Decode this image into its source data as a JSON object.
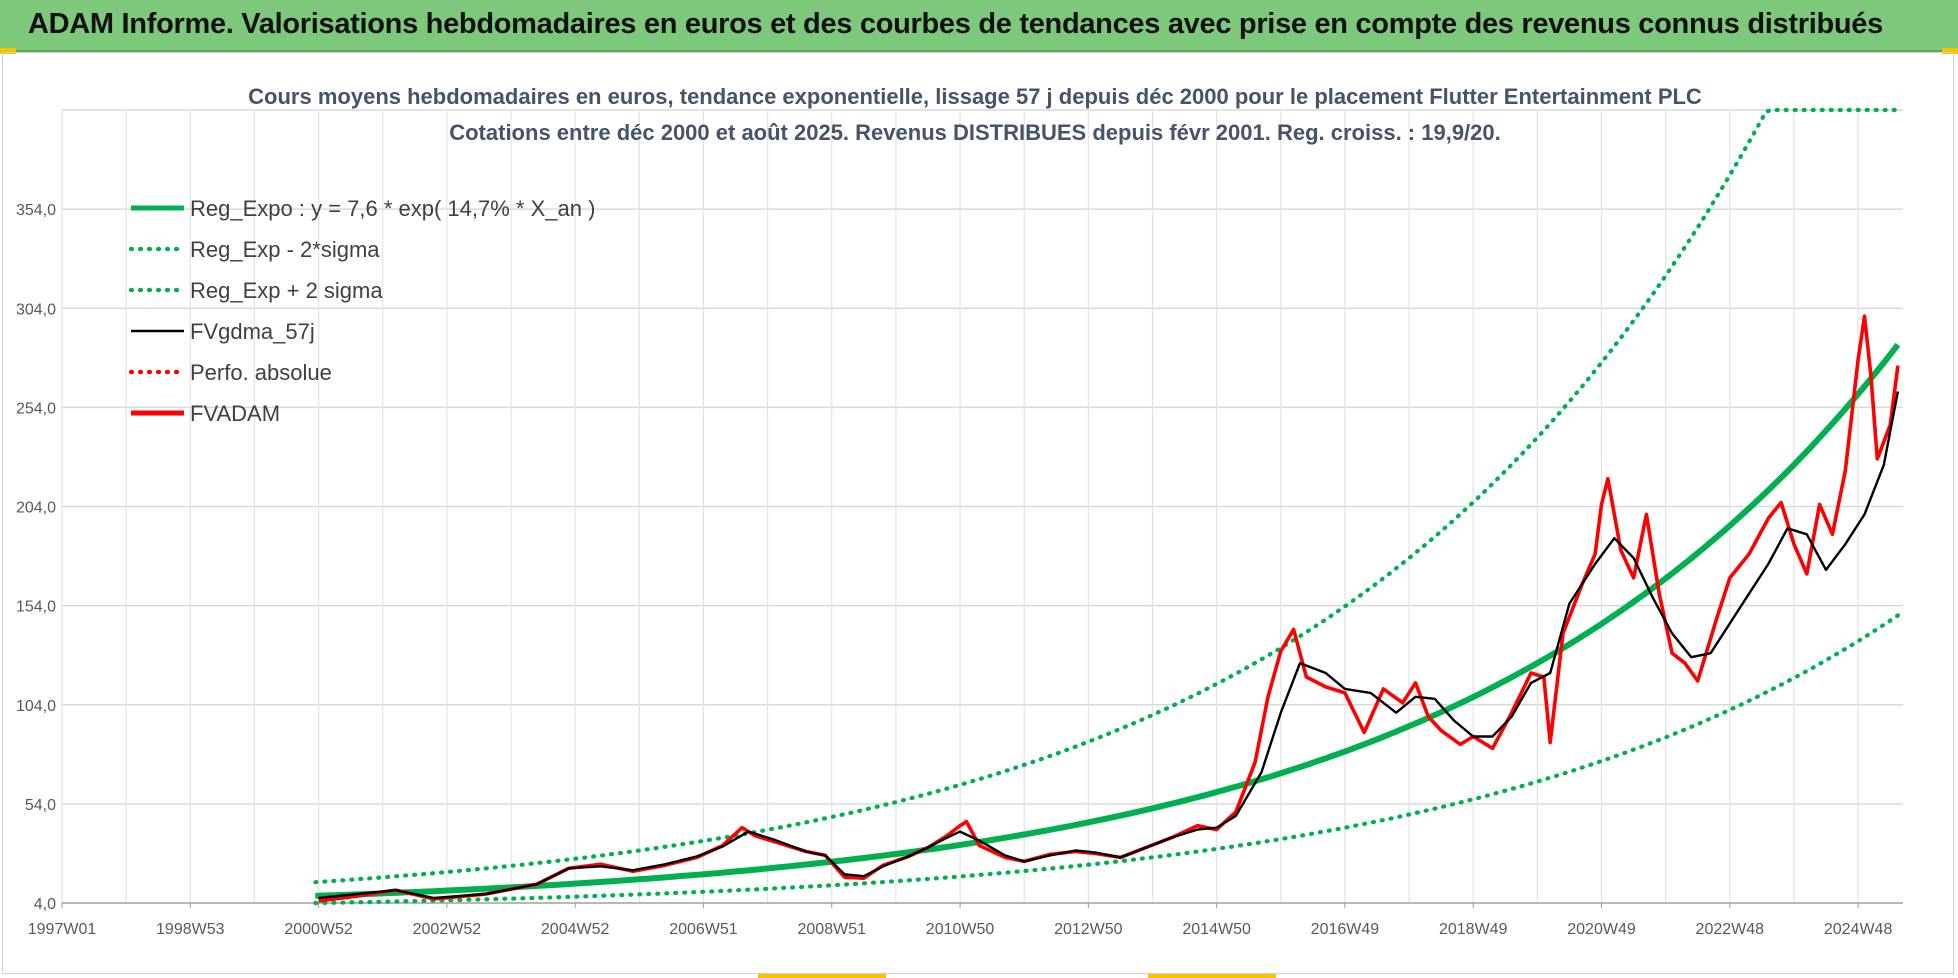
{
  "banner": {
    "title": "ADAM Informe. Valorisations hebdomadaires en euros et des courbes de tendances avec prise en compte des revenus connus distribués",
    "color": "#7dc87a"
  },
  "chart_data": {
    "type": "line",
    "title": "Cours moyens hebdomadaires en euros, tendance exponentielle, lissage 57 j depuis déc 2000 pour le placement Flutter Entertainment PLC",
    "subtitle": "Cotations entre déc 2000 et août 2025. Revenus DISTRIBUES depuis févr 2001. Reg. croiss. : 19,9/20.",
    "xlabel": "",
    "ylabel": "",
    "x_ticks": [
      "1997W01",
      "1998W53",
      "2000W52",
      "2002W52",
      "2004W52",
      "2006W51",
      "2008W51",
      "2010W50",
      "2012W50",
      "2014W50",
      "2016W49",
      "2018W49",
      "2020W49",
      "2022W48",
      "2024W48"
    ],
    "x_range": [
      1997.0,
      2025.7
    ],
    "y_ticks": [
      "4,0",
      "54,0",
      "104,0",
      "154,0",
      "204,0",
      "254,0",
      "304,0",
      "354,0"
    ],
    "ylim": [
      4,
      404
    ],
    "grid": true,
    "legend_position": "top-left",
    "trend": {
      "a": 7.6,
      "rate": 0.147,
      "x0": 2000.95,
      "x_end": 2025.62
    },
    "series": [
      {
        "name": "Reg_Expo : y = 7,6 * exp( 14,7% *  X_an )",
        "color": "#00b050",
        "style": "solid-thick",
        "x": [
          2000.95,
          2003,
          2005,
          2007,
          2009,
          2011,
          2013,
          2015,
          2016,
          2017,
          2018,
          2019,
          2020,
          2021,
          2022,
          2023,
          2024,
          2025,
          2025.62
        ],
        "values": [
          7.6,
          10.3,
          13.8,
          18.5,
          24.8,
          33.2,
          44.4,
          59.4,
          68.8,
          79.5,
          92.1,
          106.5,
          123.2,
          142.6,
          165.1,
          191.0,
          221.0,
          255.7,
          279.7
        ]
      },
      {
        "name": "Reg_Exp - 2*sigma",
        "color": "#00b050",
        "style": "dotted",
        "x": [
          2000.95,
          2003,
          2005,
          2007,
          2009,
          2011,
          2013,
          2015,
          2016,
          2017,
          2018,
          2019,
          2020,
          2021,
          2022,
          2023,
          2024,
          2025,
          2025.62
        ],
        "values": [
          4.0,
          5.2,
          7.0,
          9.4,
          12.6,
          16.9,
          22.6,
          30.3,
          35.0,
          40.5,
          46.9,
          54.3,
          62.8,
          72.7,
          84.1,
          97.3,
          112.6,
          130.3,
          146.0
        ]
      },
      {
        "name": "Reg_Exp + 2 sigma",
        "color": "#00b050",
        "style": "dotted",
        "x": [
          2000.95,
          2003,
          2005,
          2007,
          2009,
          2011,
          2013,
          2015,
          2016,
          2017,
          2018,
          2019,
          2020,
          2021,
          2022,
          2023,
          2023.75,
          2025.62
        ],
        "values": [
          14.5,
          19.5,
          26.2,
          35.2,
          47.1,
          63.1,
          84.5,
          113.2,
          131.0,
          151.6,
          175.4,
          203.0,
          234.9,
          271.9,
          314.6,
          364.1,
          404.0,
          404.0
        ]
      },
      {
        "name": "FVgdma_57j",
        "color": "#000000",
        "style": "solid",
        "x": [
          2001.0,
          2002.2,
          2002.8,
          2003.6,
          2004.4,
          2004.9,
          2005.4,
          2005.9,
          2006.4,
          2006.9,
          2007.3,
          2007.7,
          2008.1,
          2008.6,
          2008.9,
          2009.2,
          2009.5,
          2009.8,
          2010.2,
          2010.5,
          2010.8,
          2011.0,
          2011.3,
          2011.7,
          2012.0,
          2012.4,
          2012.8,
          2013.1,
          2013.5,
          2013.9,
          2014.3,
          2014.7,
          2015.0,
          2015.3,
          2015.7,
          2016.0,
          2016.3,
          2016.7,
          2017.0,
          2017.4,
          2017.8,
          2018.1,
          2018.4,
          2018.7,
          2019.0,
          2019.3,
          2019.6,
          2019.9,
          2020.2,
          2020.5,
          2020.9,
          2021.2,
          2021.5,
          2021.8,
          2022.1,
          2022.4,
          2022.7,
          2023.0,
          2023.3,
          2023.6,
          2023.9,
          2024.2,
          2024.5,
          2024.8,
          2025.1,
          2025.4,
          2025.62
        ],
        "values": [
          6.5,
          10.5,
          6.5,
          8.5,
          13.5,
          21.5,
          22.5,
          20.5,
          23.5,
          27.5,
          32.5,
          40.0,
          36.0,
          30.0,
          28.0,
          18.5,
          17.5,
          22.5,
          27.5,
          32.0,
          37.0,
          40.0,
          35.5,
          28.0,
          25.0,
          28.0,
          30.5,
          29.5,
          27.0,
          32.0,
          37.0,
          41.0,
          42.0,
          48.0,
          70.0,
          100.0,
          125.0,
          120.0,
          112.0,
          110.0,
          100.0,
          108.0,
          107.0,
          96.0,
          88.0,
          88.0,
          98.0,
          115.0,
          120.0,
          155.0,
          175.0,
          188.0,
          178.0,
          158.0,
          140.0,
          128.0,
          130.0,
          145.0,
          160.0,
          175.0,
          193.0,
          190.0,
          172.0,
          185.0,
          200.0,
          225.0,
          262.0
        ]
      },
      {
        "name": "Perfo. absolue",
        "color": "#ff0000",
        "style": "dotted",
        "x": [],
        "values": []
      },
      {
        "name": "FVADAM",
        "color": "#ff0000",
        "style": "solid-thick",
        "x": [
          2001.0,
          2001.6,
          2002.2,
          2002.8,
          2003.6,
          2004.4,
          2004.9,
          2005.4,
          2005.9,
          2006.4,
          2006.9,
          2007.3,
          2007.6,
          2007.8,
          2008.1,
          2008.6,
          2008.9,
          2009.2,
          2009.5,
          2009.8,
          2010.2,
          2010.5,
          2010.8,
          2011.0,
          2011.1,
          2011.3,
          2011.7,
          2012.0,
          2012.4,
          2012.8,
          2013.1,
          2013.5,
          2013.9,
          2014.3,
          2014.7,
          2015.0,
          2015.3,
          2015.6,
          2015.8,
          2016.0,
          2016.2,
          2016.4,
          2016.7,
          2017.0,
          2017.3,
          2017.6,
          2017.9,
          2018.1,
          2018.3,
          2018.5,
          2018.8,
          2019.0,
          2019.3,
          2019.6,
          2019.9,
          2020.1,
          2020.2,
          2020.4,
          2020.7,
          2020.9,
          2021.0,
          2021.1,
          2021.3,
          2021.5,
          2021.7,
          2021.9,
          2022.1,
          2022.3,
          2022.5,
          2022.8,
          2023.0,
          2023.3,
          2023.6,
          2023.8,
          2024.0,
          2024.2,
          2024.4,
          2024.6,
          2024.8,
          2025.0,
          2025.1,
          2025.2,
          2025.3,
          2025.5,
          2025.62
        ],
        "values": [
          5.0,
          7.5,
          10.5,
          6.0,
          8.5,
          13.5,
          21.5,
          23.5,
          20.0,
          23.0,
          27.0,
          33.0,
          42.0,
          38.0,
          35.0,
          30.0,
          28.0,
          17.0,
          16.5,
          23.0,
          27.5,
          32.0,
          38.0,
          43.0,
          45.0,
          33.0,
          27.0,
          25.0,
          28.5,
          30.0,
          29.0,
          27.0,
          32.0,
          37.0,
          43.0,
          41.0,
          50.0,
          75.0,
          108.0,
          131.0,
          142.0,
          118.0,
          113.0,
          110.0,
          90.0,
          112.0,
          105.0,
          115.0,
          98.0,
          91.0,
          84.0,
          88.0,
          82.0,
          100.0,
          120.0,
          118.0,
          85.0,
          140.0,
          165.0,
          180.0,
          205.0,
          218.0,
          182.0,
          168.0,
          200.0,
          160.0,
          130.0,
          125.0,
          116.0,
          148.0,
          168.0,
          180.0,
          198.0,
          206.0,
          185.0,
          170.0,
          205.0,
          190.0,
          222.0,
          278.0,
          300.0,
          270.0,
          228.0,
          245.0,
          275.0
        ]
      }
    ]
  }
}
